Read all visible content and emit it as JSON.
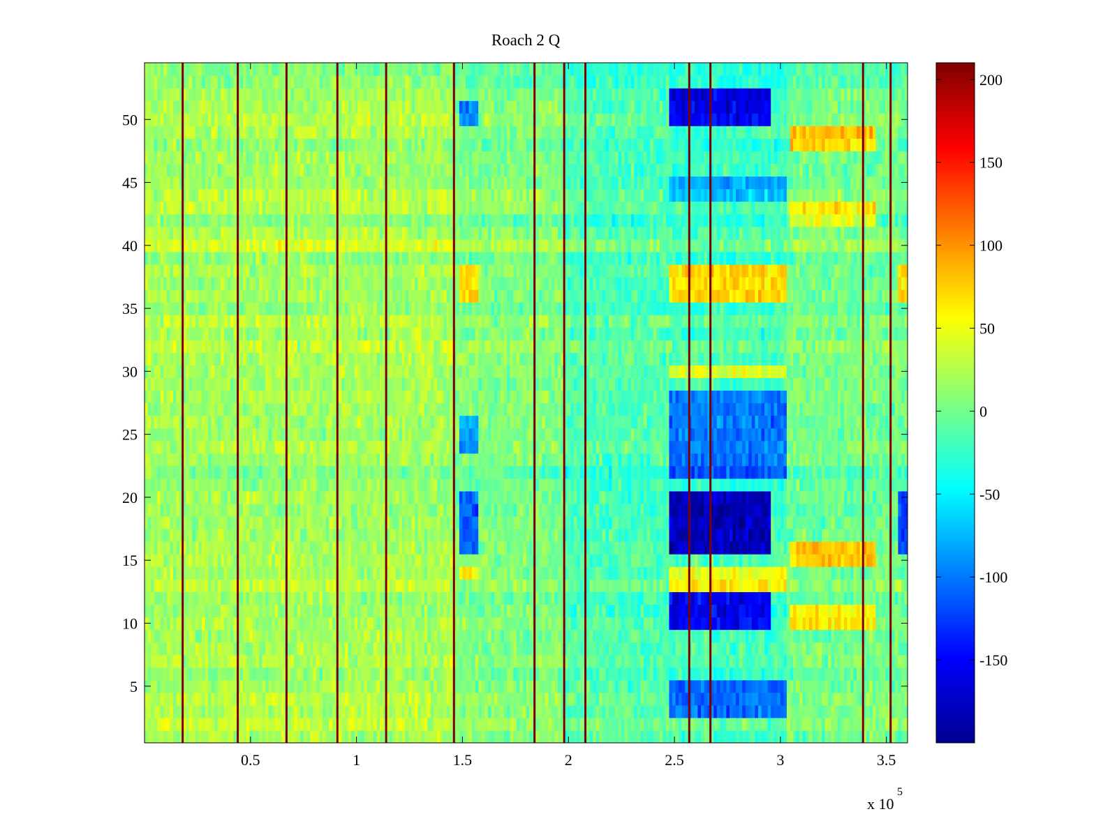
{
  "chart_data": {
    "type": "heatmap",
    "title": "Roach 2 Q",
    "xlabel": "",
    "ylabel": "",
    "x_exponent_label": "x 10",
    "x_exponent_power": "5",
    "xlim": [
      0,
      360000
    ],
    "ylim": [
      0.5,
      54.5
    ],
    "x_ticks": [
      50000,
      100000,
      150000,
      200000,
      250000,
      300000,
      350000
    ],
    "x_tick_labels": [
      "0.5",
      "1",
      "1.5",
      "2",
      "2.5",
      "3",
      "3.5"
    ],
    "y_ticks": [
      5,
      10,
      15,
      20,
      25,
      30,
      35,
      40,
      45,
      50
    ],
    "y_tick_labels": [
      "5",
      "10",
      "15",
      "20",
      "25",
      "30",
      "35",
      "40",
      "45",
      "50"
    ],
    "colorbar": {
      "colormap": "jet",
      "range": [
        -200,
        210
      ],
      "ticks": [
        -150,
        -100,
        -50,
        0,
        50,
        100,
        150,
        200
      ],
      "tick_labels": [
        "-150",
        "-100",
        "-50",
        "0",
        "50",
        "100",
        "150",
        "200"
      ]
    },
    "grid": false,
    "n_rows": 54,
    "vertical_stripes_x": [
      18000,
      44000,
      67000,
      91000,
      114000,
      146000,
      184000,
      198000,
      208000,
      257000,
      267000,
      339000,
      352000
    ],
    "regions": [
      {
        "x": [
          0,
          146000
        ],
        "rows": [
          1,
          54
        ],
        "level": 20
      },
      {
        "x": [
          146000,
          198000
        ],
        "rows": [
          1,
          54
        ],
        "level": 5
      },
      {
        "x": [
          198000,
          247000
        ],
        "rows": [
          1,
          54
        ],
        "level": -15
      },
      {
        "x": [
          247000,
          303000
        ],
        "rows": [
          1,
          54
        ],
        "level": -20
      },
      {
        "x": [
          303000,
          360000
        ],
        "rows": [
          1,
          54
        ],
        "level": 0
      },
      {
        "x": [
          247000,
          295000
        ],
        "rows": [
          50,
          52
        ],
        "level": -160
      },
      {
        "x": [
          247000,
          295000
        ],
        "rows": [
          16,
          20
        ],
        "level": -175
      },
      {
        "x": [
          247000,
          295000
        ],
        "rows": [
          10,
          12
        ],
        "level": -150
      },
      {
        "x": [
          247000,
          303000
        ],
        "rows": [
          3,
          5
        ],
        "level": -110
      },
      {
        "x": [
          247000,
          303000
        ],
        "rows": [
          22,
          28
        ],
        "level": -100
      },
      {
        "x": [
          247000,
          303000
        ],
        "rows": [
          36,
          38
        ],
        "level": 70
      },
      {
        "x": [
          247000,
          303000
        ],
        "rows": [
          13,
          14
        ],
        "level": 50
      },
      {
        "x": [
          247000,
          303000
        ],
        "rows": [
          44,
          45
        ],
        "level": -80
      },
      {
        "x": [
          247000,
          303000
        ],
        "rows": [
          30,
          30
        ],
        "level": 40
      },
      {
        "x": [
          305000,
          345000
        ],
        "rows": [
          48,
          49
        ],
        "level": 80
      },
      {
        "x": [
          305000,
          345000
        ],
        "rows": [
          15,
          16
        ],
        "level": 75
      },
      {
        "x": [
          305000,
          345000
        ],
        "rows": [
          10,
          11
        ],
        "level": 60
      },
      {
        "x": [
          305000,
          345000
        ],
        "rows": [
          42,
          43
        ],
        "level": 55
      },
      {
        "x": [
          148000,
          158000
        ],
        "rows": [
          16,
          20
        ],
        "level": -110
      },
      {
        "x": [
          148000,
          158000
        ],
        "rows": [
          50,
          51
        ],
        "level": -100
      },
      {
        "x": [
          148000,
          158000
        ],
        "rows": [
          36,
          38
        ],
        "level": 70
      },
      {
        "x": [
          148000,
          158000
        ],
        "rows": [
          24,
          26
        ],
        "level": -80
      },
      {
        "x": [
          148000,
          158000
        ],
        "rows": [
          14,
          14
        ],
        "level": 60
      },
      {
        "x": [
          355000,
          360000
        ],
        "rows": [
          16,
          20
        ],
        "level": -120
      },
      {
        "x": [
          355000,
          360000
        ],
        "rows": [
          36,
          38
        ],
        "level": 70
      }
    ]
  }
}
